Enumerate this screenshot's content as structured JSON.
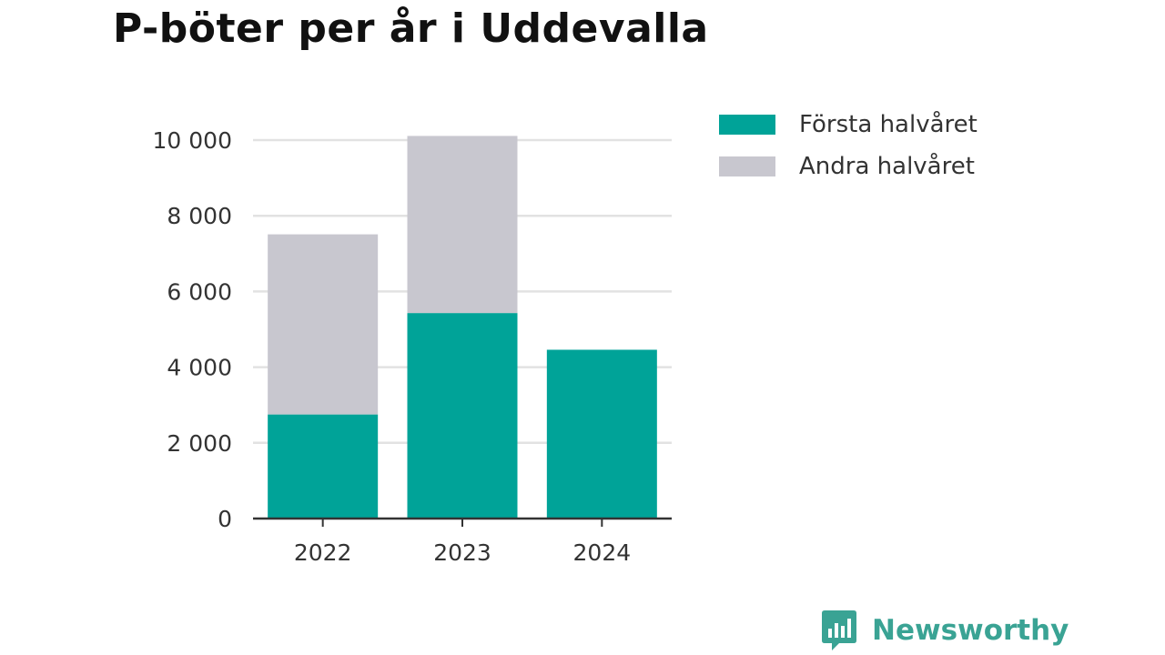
{
  "title": "P-böter per år i Uddevalla",
  "chart_data": {
    "type": "bar",
    "stacked": true,
    "title": "P-böter per år i Uddevalla",
    "xlabel": "",
    "ylabel": "",
    "categories": [
      "2022",
      "2023",
      "2024"
    ],
    "series": [
      {
        "name": "Första halvåret",
        "color": "#00a398",
        "values": [
          2750,
          5430,
          4460
        ]
      },
      {
        "name": "Andra halvåret",
        "color": "#c8c7cf",
        "values": [
          4760,
          4680,
          0
        ]
      }
    ],
    "ylim": [
      0,
      10000
    ],
    "yticks": [
      0,
      2000,
      4000,
      6000,
      8000,
      10000
    ],
    "ytick_labels": [
      "0",
      "2 000",
      "4 000",
      "6 000",
      "8 000",
      "10 000"
    ],
    "grid": true,
    "legend_position": "top-right"
  },
  "legend": {
    "items": [
      {
        "label": "Första halvåret",
        "color": "#00a398"
      },
      {
        "label": "Andra halvåret",
        "color": "#c8c7cf"
      }
    ]
  },
  "brand": {
    "name": "Newsworthy",
    "color": "#3aa394",
    "icon": "bar-chart-speech-bubble-icon"
  }
}
